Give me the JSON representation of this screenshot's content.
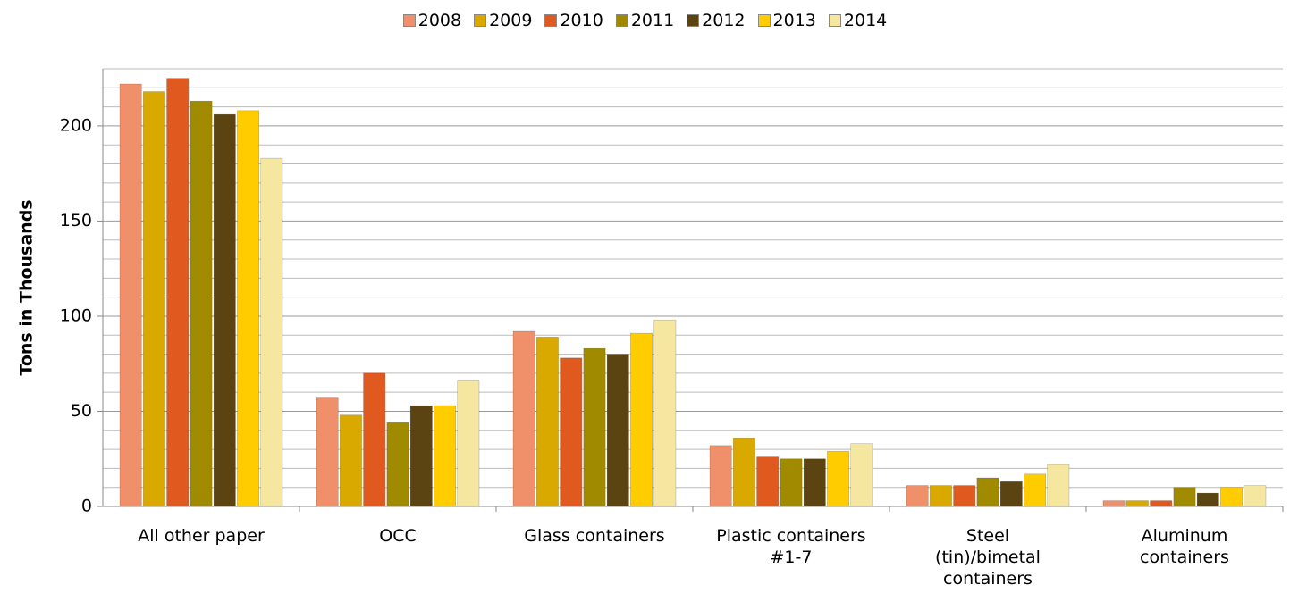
{
  "chart_data": {
    "type": "bar",
    "y_label": "Tons in Thousands",
    "categories": [
      "All other paper",
      "OCC",
      "Glass containers",
      "Plastic containers\n#1-7",
      "Steel\n(tin)/bimetal\ncontainers",
      "Aluminum\ncontainers"
    ],
    "series": [
      {
        "name": "2008",
        "color": "#f0906a",
        "values": [
          222,
          57,
          92,
          32,
          11,
          3
        ]
      },
      {
        "name": "2009",
        "color": "#d9a900",
        "values": [
          218,
          48,
          89,
          36,
          11,
          3
        ]
      },
      {
        "name": "2010",
        "color": "#e0591f",
        "values": [
          225,
          70,
          78,
          26,
          11,
          3
        ]
      },
      {
        "name": "2011",
        "color": "#a08a00",
        "values": [
          213,
          44,
          83,
          25,
          15,
          10
        ]
      },
      {
        "name": "2012",
        "color": "#5c4412",
        "values": [
          206,
          53,
          80,
          25,
          13,
          7
        ]
      },
      {
        "name": "2013",
        "color": "#ffcc00",
        "values": [
          208,
          53,
          91,
          29,
          17,
          10
        ]
      },
      {
        "name": "2014",
        "color": "#f5e6a0",
        "values": [
          183,
          66,
          98,
          33,
          22,
          11
        ]
      }
    ],
    "ylim": [
      0,
      230
    ],
    "yticks": [
      0,
      50,
      100,
      150,
      200
    ],
    "minor_yticks": [
      10,
      20,
      30,
      40,
      60,
      70,
      80,
      90,
      110,
      120,
      130,
      140,
      160,
      170,
      180,
      190,
      210,
      220,
      230
    ],
    "grid": true,
    "legend": "top"
  }
}
